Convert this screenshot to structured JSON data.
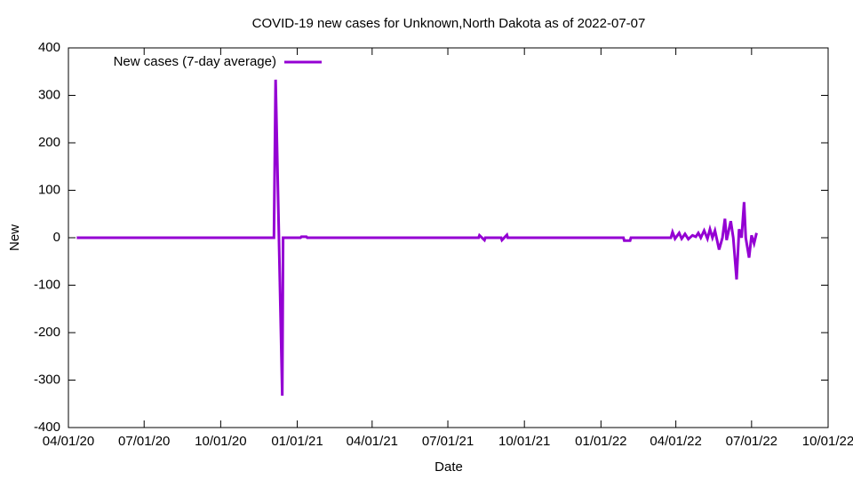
{
  "chart_data": {
    "type": "line",
    "title": "COVID-19 new cases for Unknown,North Dakota as of 2022-07-07",
    "x_label": "Date",
    "y_label": "New",
    "x": [
      "2020-04-11",
      "2020-12-04",
      "2020-12-06",
      "2020-12-10",
      "2020-12-14",
      "2020-12-15",
      "2021-01-05",
      "2021-01-06",
      "2021-01-12",
      "2021-01-13",
      "2021-08-07",
      "2021-08-08",
      "2021-08-14",
      "2021-08-15",
      "2021-09-03",
      "2021-09-04",
      "2021-09-10",
      "2021-09-11",
      "2022-01-28",
      "2022-01-29",
      "2022-02-05",
      "2022-02-06",
      "2022-03-26",
      "2022-03-28",
      "2022-03-31",
      "2022-04-05",
      "2022-04-08",
      "2022-04-12",
      "2022-04-16",
      "2022-04-21",
      "2022-04-25",
      "2022-04-28",
      "2022-05-01",
      "2022-05-05",
      "2022-05-09",
      "2022-05-12",
      "2022-05-15",
      "2022-05-18",
      "2022-05-23",
      "2022-05-27",
      "2022-05-30",
      "2022-06-01",
      "2022-06-06",
      "2022-06-09",
      "2022-06-13",
      "2022-06-16",
      "2022-06-19",
      "2022-06-22",
      "2022-06-24",
      "2022-06-28",
      "2022-07-01",
      "2022-07-04",
      "2022-07-07"
    ],
    "series": [
      {
        "name": "New cases (7-day average)",
        "color": "#9400d3",
        "values": [
          0,
          0,
          333,
          0,
          -333,
          0,
          0,
          2,
          2,
          0,
          0,
          5,
          -5,
          0,
          0,
          -5,
          6,
          0,
          0,
          -6,
          -6,
          0,
          0,
          12,
          -2,
          10,
          -2,
          8,
          -3,
          5,
          2,
          10,
          0,
          15,
          -2,
          18,
          0,
          15,
          -25,
          0,
          40,
          -5,
          35,
          0,
          -88,
          18,
          0,
          75,
          0,
          -42,
          5,
          -12,
          10
        ]
      }
    ],
    "xlim": [
      "2020-04-01",
      "2022-10-01"
    ],
    "xticks": [
      {
        "value": "2020-04-01",
        "label": "04/01/20"
      },
      {
        "value": "2020-07-01",
        "label": "07/01/20"
      },
      {
        "value": "2020-10-01",
        "label": "10/01/20"
      },
      {
        "value": "2021-01-01",
        "label": "01/01/21"
      },
      {
        "value": "2021-04-01",
        "label": "04/01/21"
      },
      {
        "value": "2021-07-01",
        "label": "07/01/21"
      },
      {
        "value": "2021-10-01",
        "label": "10/01/21"
      },
      {
        "value": "2022-01-01",
        "label": "01/01/22"
      },
      {
        "value": "2022-04-01",
        "label": "04/01/22"
      },
      {
        "value": "2022-07-01",
        "label": "07/01/22"
      },
      {
        "value": "2022-10-01",
        "label": "10/01/22"
      }
    ],
    "ylim": [
      -400,
      400
    ],
    "yticks": [
      -400,
      -300,
      -200,
      -100,
      0,
      100,
      200,
      300,
      400
    ],
    "grid": false,
    "legend": "top-left"
  }
}
